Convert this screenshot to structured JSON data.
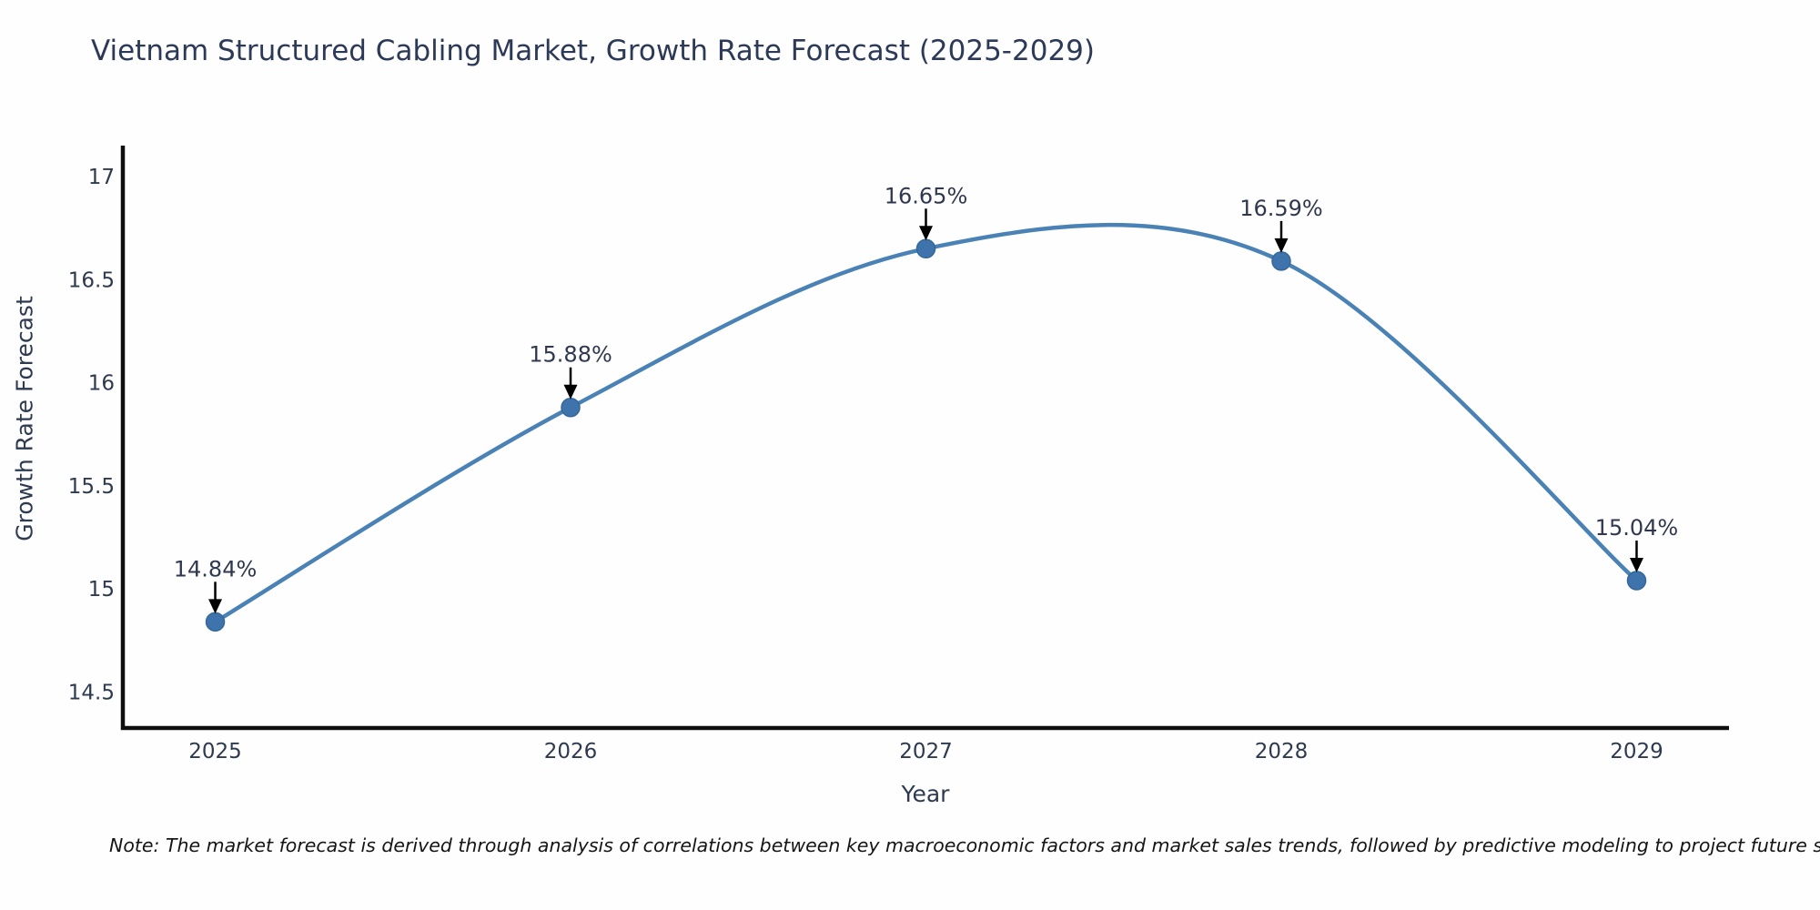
{
  "title": "Vietnam Structured Cabling Market, Growth Rate Forecast (2025-2029)",
  "note": "Note: The market forecast is derived through analysis of correlations between key macroeconomic factors and market sales trends, followed by predictive modeling to project future sal",
  "chart_data": {
    "type": "line",
    "title": "Vietnam Structured Cabling Market, Growth Rate Forecast (2025-2029)",
    "xlabel": "Year",
    "ylabel": "Growth Rate Forecast",
    "categories": [
      2025,
      2026,
      2027,
      2028,
      2029
    ],
    "values": [
      14.84,
      15.88,
      16.65,
      16.59,
      15.04
    ],
    "point_labels": [
      "14.84%",
      "15.88%",
      "16.65%",
      "16.59%",
      "15.04%"
    ],
    "xtick_labels": [
      "2025",
      "2026",
      "2027",
      "2028",
      "2029"
    ],
    "ytick_values": [
      14.5,
      15,
      15.5,
      16,
      16.5,
      17
    ],
    "ytick_labels": [
      "14.5",
      "15",
      "15.5",
      "16",
      "16.5",
      "17"
    ],
    "xlim": [
      2024.74,
      2029.26
    ],
    "ylim": [
      14.325,
      17.15
    ],
    "grid": false,
    "legend": false,
    "smooth_spline": true,
    "line_color": "#4a82b6",
    "marker_color": "#3e74ab",
    "marker_edge_color": "#35679a",
    "annotation_text_color": "#303850",
    "annotation_arrow_color": "#000000",
    "axis_color": "#0d0d0d",
    "tick_text_color": "#2e3a50"
  }
}
